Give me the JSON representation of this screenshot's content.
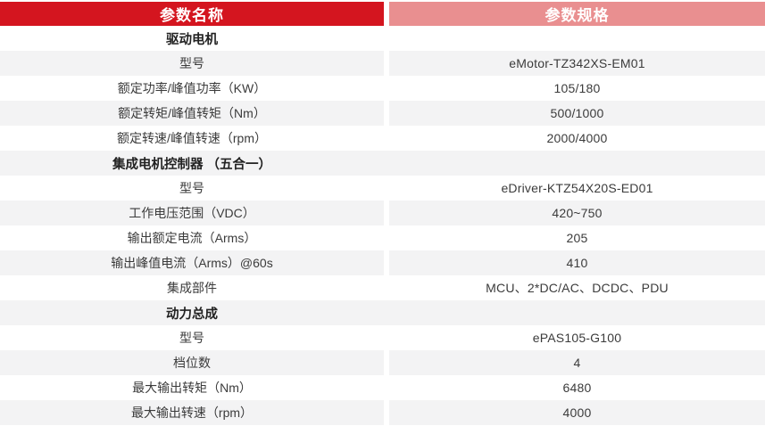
{
  "header": {
    "col1": "参数名称",
    "col2": "参数规格"
  },
  "colors": {
    "header_left_bg": "#D4151F",
    "header_right_bg": "#E98F90",
    "header_text": "#FFFFFF",
    "row_alt_bg": "#F3F3F4",
    "label_text": "#3B3B3B",
    "section_text": "#222222"
  },
  "rows": [
    {
      "type": "section",
      "label": "驱动电机"
    },
    {
      "type": "data",
      "label": "型号",
      "value": "eMotor-TZ342XS-EM01"
    },
    {
      "type": "data",
      "label": "额定功率/峰值功率（KW）",
      "value": "105/180"
    },
    {
      "type": "data",
      "label": "额定转矩/峰值转矩（Nm）",
      "value": "500/1000"
    },
    {
      "type": "data",
      "label": "额定转速/峰值转速（rpm）",
      "value": "2000/4000"
    },
    {
      "type": "section",
      "label": "集成电机控制器 （五合一）"
    },
    {
      "type": "data",
      "label": "型号",
      "value": "eDriver-KTZ54X20S-ED01"
    },
    {
      "type": "data",
      "label": "工作电压范围（VDC）",
      "value": "420~750"
    },
    {
      "type": "data",
      "label": "输出额定电流（Arms）",
      "value": "205"
    },
    {
      "type": "data",
      "label": "输出峰值电流（Arms）@60s",
      "value": "410"
    },
    {
      "type": "data",
      "label": "集成部件",
      "value": "MCU、2*DC/AC、DCDC、PDU"
    },
    {
      "type": "section",
      "label": "动力总成"
    },
    {
      "type": "data",
      "label": "型号",
      "value": "ePAS105-G100"
    },
    {
      "type": "data",
      "label": "档位数",
      "value": "4"
    },
    {
      "type": "data",
      "label": "最大输出转矩（Nm）",
      "value": "6480"
    },
    {
      "type": "data",
      "label": "最大输出转速（rpm）",
      "value": "4000"
    }
  ]
}
